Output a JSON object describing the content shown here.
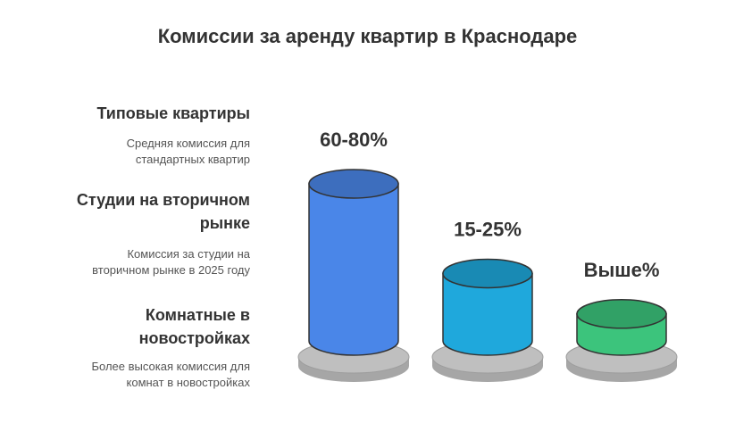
{
  "chart_data": {
    "type": "bar",
    "title": "Комиссии за аренду квартир в Краснодаре",
    "categories": [
      "Типовые квартиры",
      "Студии на вторичном рынке",
      "Комнатные в новостройках"
    ],
    "category_lines": [
      [
        "Типовые квартиры"
      ],
      [
        "Студии на вторичном",
        "рынке"
      ],
      [
        "Комнатные в",
        "новостройках"
      ]
    ],
    "descriptions": [
      [
        "Средняя комиссия для",
        "стандартных квартир"
      ],
      [
        "Комиссия за студии на",
        "вторичном рынке в 2025 году"
      ],
      [
        "Более высокая комиссия для",
        "комнат в новостройках"
      ]
    ],
    "value_labels": [
      "60-80%",
      "15-25%",
      "Выше%"
    ],
    "relative_heights": [
      1.0,
      0.38,
      0.1
    ],
    "colors": [
      "#4a86e8",
      "#1fa8dc",
      "#3cc47c"
    ],
    "base_color": "#bfbfbf",
    "legend_position": "left"
  }
}
